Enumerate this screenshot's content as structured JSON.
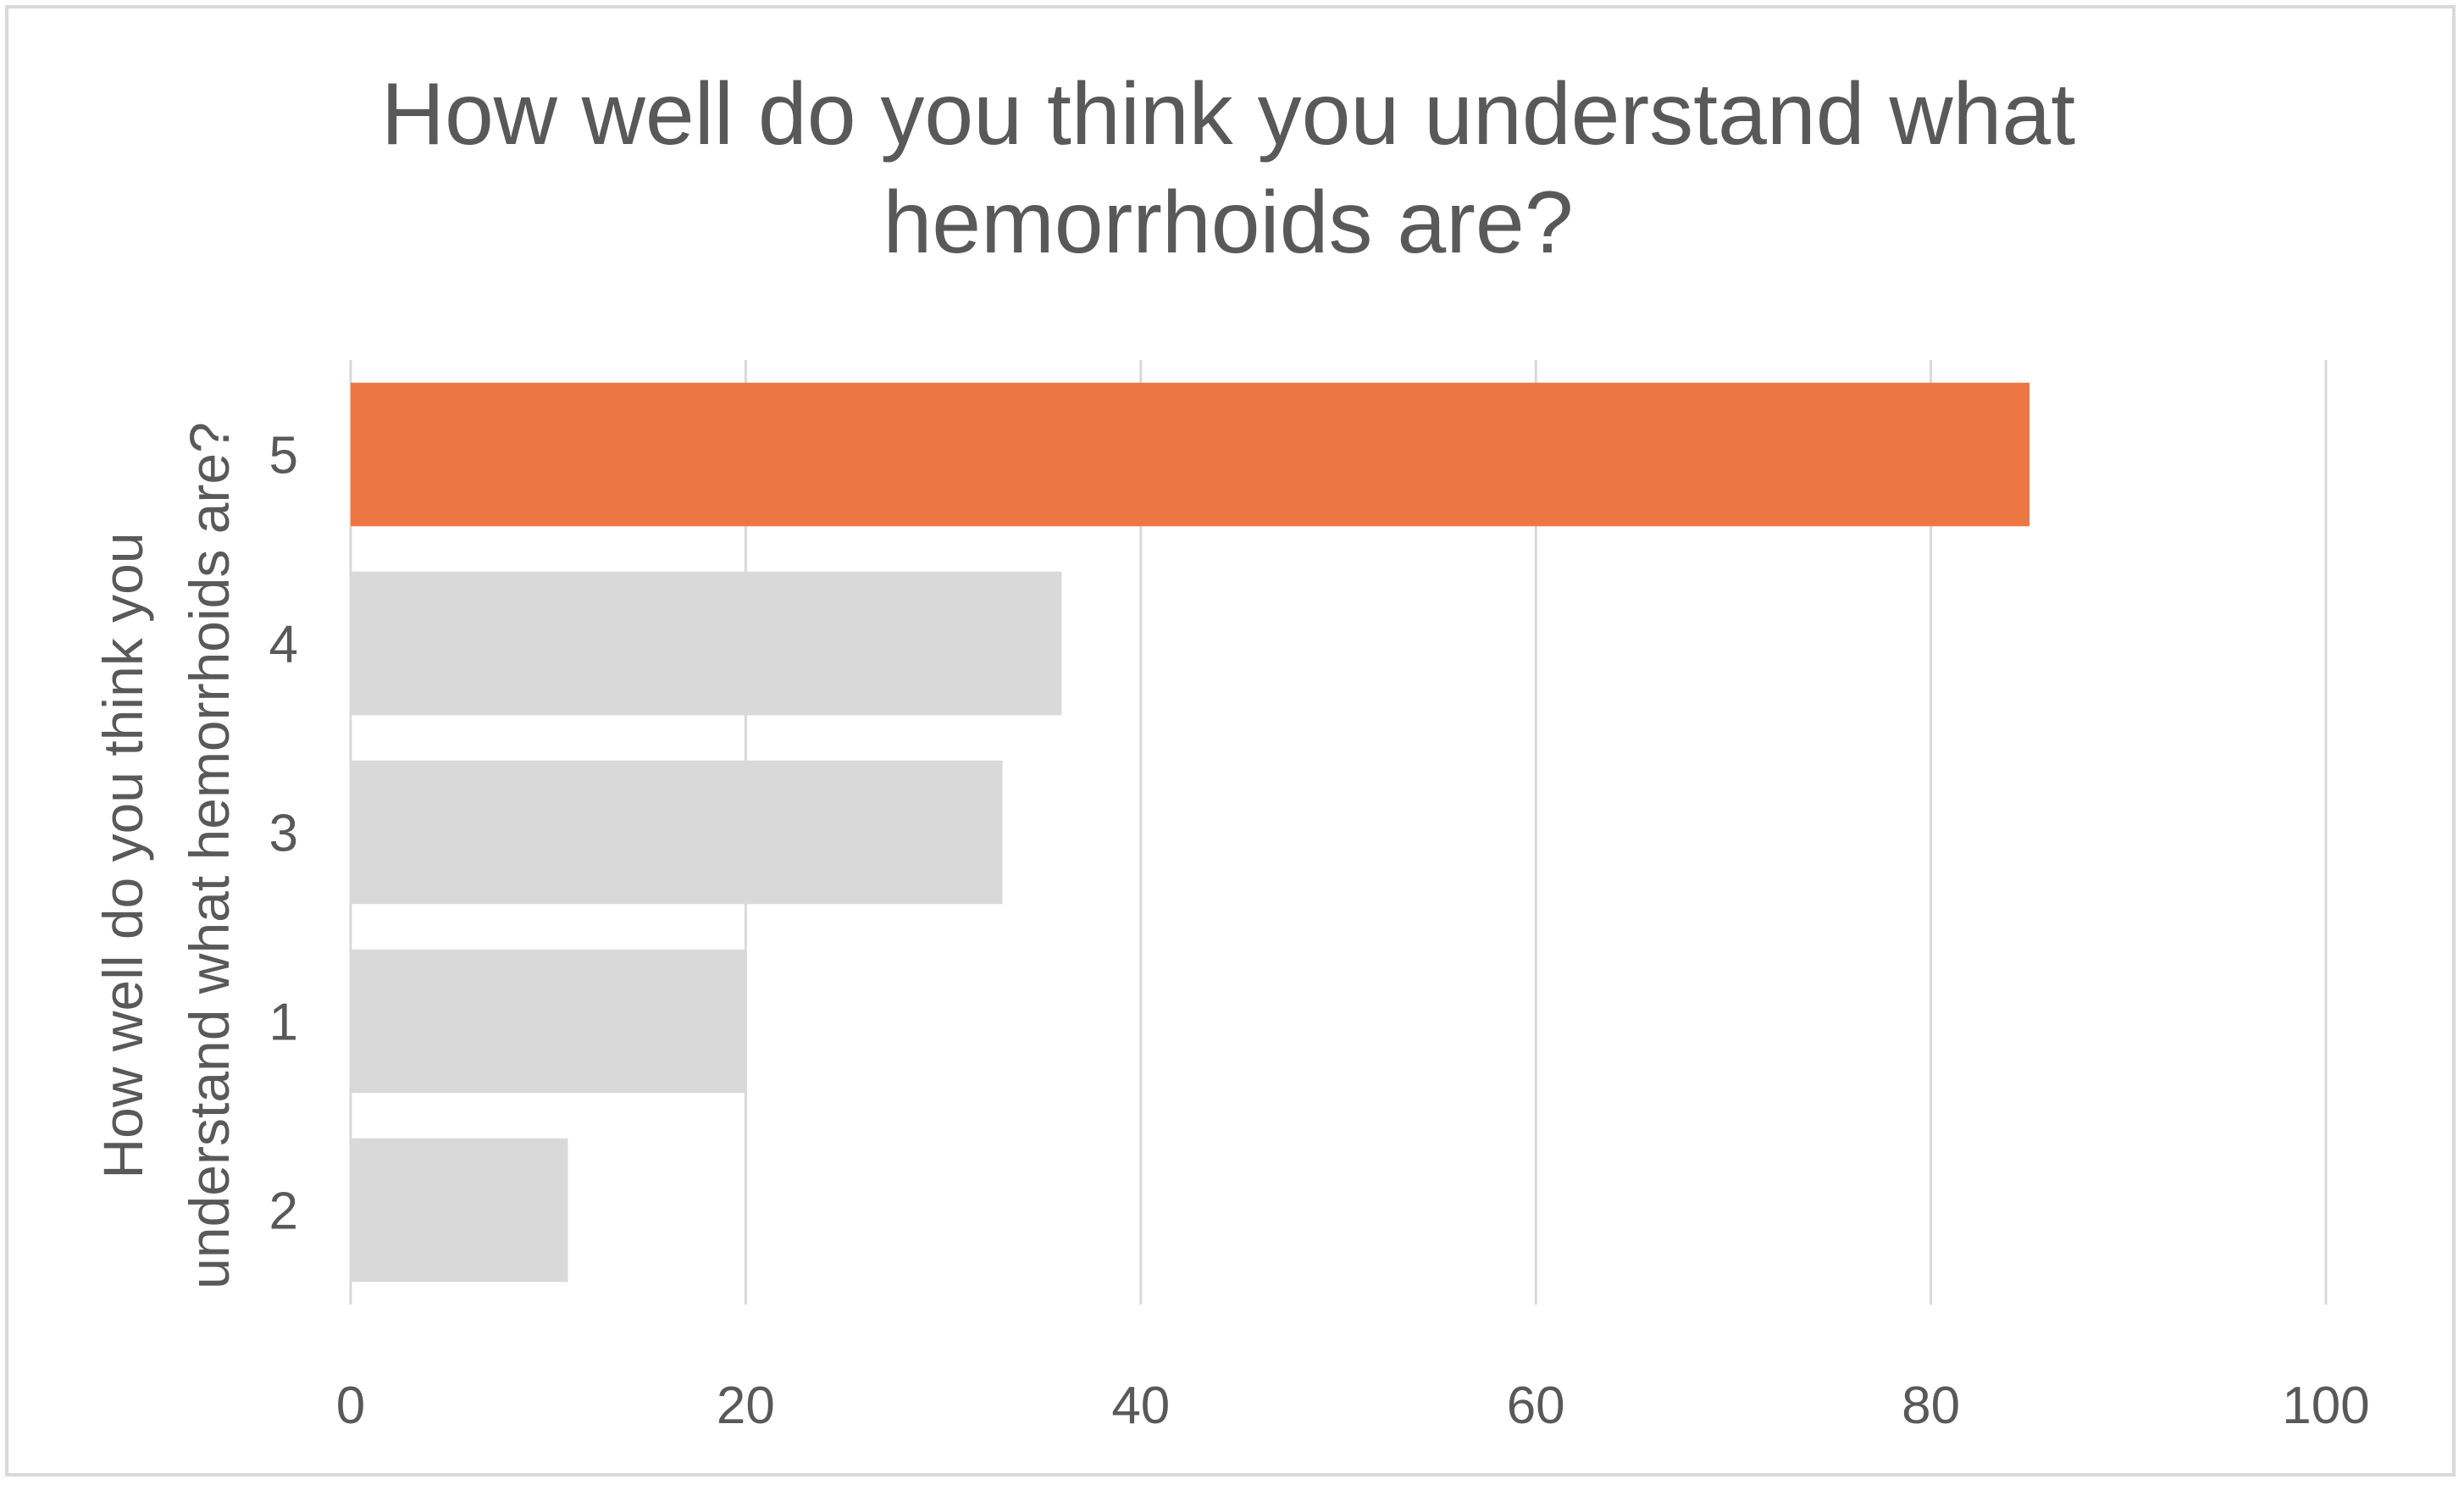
{
  "chart_data": {
    "type": "bar",
    "orientation": "horizontal",
    "title": "How well do you think you understand what hemorrhoids are?",
    "title_lines": [
      "How well do you think you understand what",
      "hemorrhoids are?"
    ],
    "ylabel": "How well do you think you understand what hemorrhoids are?",
    "ylabel_lines": [
      "How well do you think you",
      "understand what hemorrhoids are?"
    ],
    "xlabel": "",
    "categories": [
      "5",
      "4",
      "3",
      "1",
      "2"
    ],
    "values": [
      85,
      36,
      33,
      20,
      11
    ],
    "bar_colors": [
      "#ed7742",
      "#d9d9d9",
      "#d9d9d9",
      "#d9d9d9",
      "#d9d9d9"
    ],
    "xlim": [
      0,
      100
    ],
    "xticks": [
      "0",
      "20",
      "40",
      "60",
      "80",
      "100"
    ],
    "grid": "vertical",
    "legend": "none",
    "colors": {
      "highlight": "#ed7742",
      "bar": "#d9d9d9",
      "grid": "#d9d9d9",
      "text": "#595959"
    }
  }
}
